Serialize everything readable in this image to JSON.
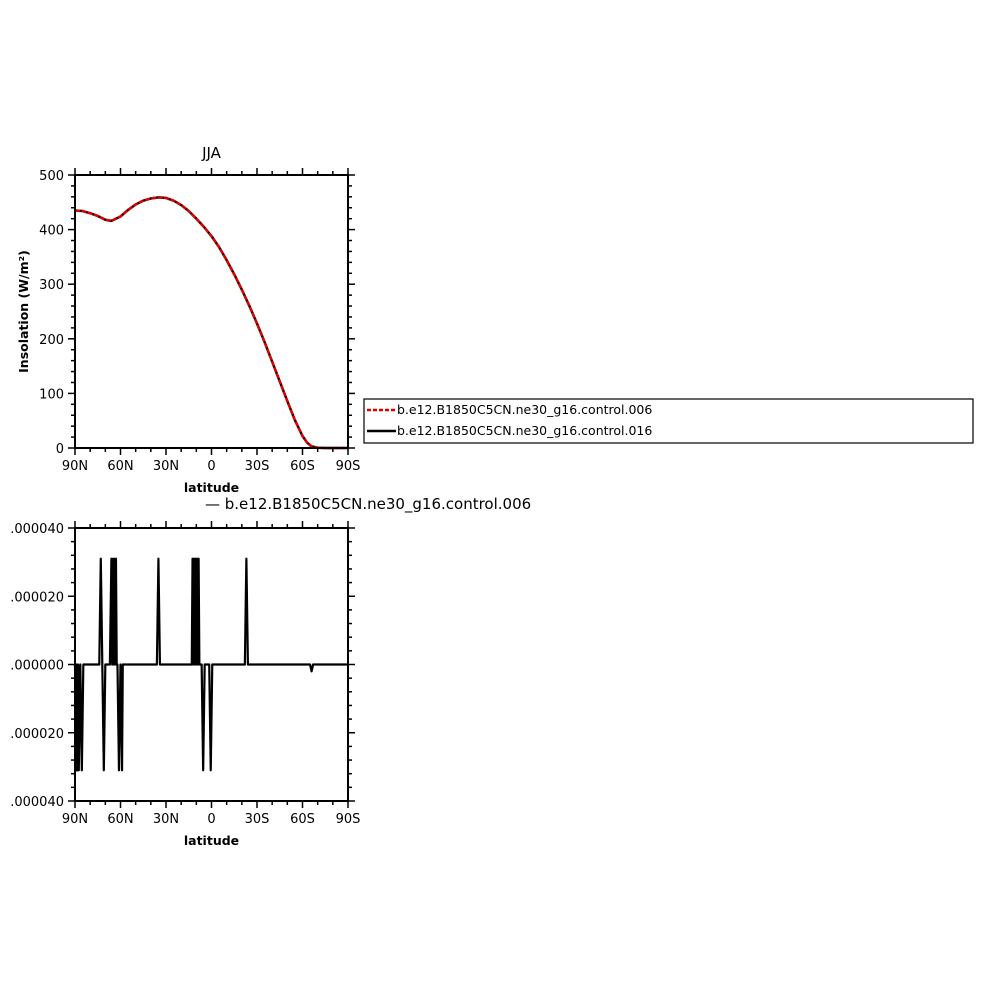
{
  "chart_data": [
    {
      "type": "line",
      "title": "JJA",
      "xlabel": "latitude",
      "ylabel": "Insolation (W/m²)",
      "xlim": [
        90,
        -90
      ],
      "ylim": [
        0,
        500
      ],
      "xticks": [
        {
          "v": 90,
          "label": "90N"
        },
        {
          "v": 60,
          "label": "60N"
        },
        {
          "v": 30,
          "label": "30N"
        },
        {
          "v": 0,
          "label": "0"
        },
        {
          "v": -30,
          "label": "30S"
        },
        {
          "v": -60,
          "label": "60S"
        },
        {
          "v": -90,
          "label": "90S"
        }
      ],
      "yticks": [
        {
          "v": 0,
          "label": "0"
        },
        {
          "v": 100,
          "label": "100"
        },
        {
          "v": 200,
          "label": "200"
        },
        {
          "v": 300,
          "label": "300"
        },
        {
          "v": 400,
          "label": "400"
        },
        {
          "v": 500,
          "label": "500"
        }
      ],
      "grid": false,
      "legend_position": "right",
      "series": [
        {
          "name": "b.e12.B1850C5CN.ne30_g16.control.006",
          "color": "#e00000",
          "dash": true,
          "x": [
            90,
            85,
            80,
            75,
            70,
            66,
            60,
            55,
            50,
            45,
            40,
            35,
            30,
            25,
            20,
            15,
            10,
            5,
            0,
            -5,
            -10,
            -15,
            -20,
            -25,
            -30,
            -35,
            -40,
            -45,
            -50,
            -55,
            -60,
            -63,
            -66,
            -70,
            -75,
            -80,
            -85,
            -90
          ],
          "y": [
            435,
            434,
            430,
            425,
            418,
            416,
            424,
            436,
            446,
            453,
            457,
            459,
            458,
            453,
            445,
            434,
            420,
            405,
            388,
            368,
            344,
            318,
            290,
            260,
            228,
            194,
            158,
            122,
            86,
            51,
            22,
            10,
            3,
            0.5,
            0,
            0,
            0,
            0
          ]
        },
        {
          "name": "b.e12.B1850C5CN.ne30_g16.control.016",
          "color": "#000000",
          "dash": false,
          "x": [
            90,
            85,
            80,
            75,
            70,
            66,
            60,
            55,
            50,
            45,
            40,
            35,
            30,
            25,
            20,
            15,
            10,
            5,
            0,
            -5,
            -10,
            -15,
            -20,
            -25,
            -30,
            -35,
            -40,
            -45,
            -50,
            -55,
            -60,
            -63,
            -66,
            -70,
            -75,
            -80,
            -85,
            -90
          ],
          "y": [
            435,
            434,
            430,
            425,
            418,
            416,
            424,
            436,
            446,
            453,
            457,
            459,
            458,
            453,
            445,
            434,
            420,
            405,
            388,
            368,
            344,
            318,
            290,
            260,
            228,
            194,
            158,
            122,
            86,
            51,
            22,
            10,
            3,
            0.5,
            0,
            0,
            0,
            0
          ]
        }
      ]
    },
    {
      "type": "line",
      "title": "— b.e12.B1850C5CN.ne30_g16.control.006",
      "xlabel": "latitude",
      "ylabel": "",
      "xlim": [
        90,
        -90
      ],
      "ylim": [
        -4e-05,
        4e-05
      ],
      "xticks": [
        {
          "v": 90,
          "label": "90N"
        },
        {
          "v": 60,
          "label": "60N"
        },
        {
          "v": 30,
          "label": "30N"
        },
        {
          "v": 0,
          "label": "0"
        },
        {
          "v": -30,
          "label": "30S"
        },
        {
          "v": -60,
          "label": "60S"
        },
        {
          "v": -90,
          "label": "90S"
        }
      ],
      "yticks": [
        {
          "v": 4e-05,
          "label": ".000040"
        },
        {
          "v": 2e-05,
          "label": ".000020"
        },
        {
          "v": 0,
          "label": ".000000"
        },
        {
          "v": -2e-05,
          "label": ".000020"
        },
        {
          "v": -4e-05,
          "label": ".000040"
        }
      ],
      "grid": false,
      "series": [
        {
          "name": "",
          "color": "#000000",
          "x": [
            90,
            89.5,
            89,
            88.5,
            88,
            87.5,
            86.5,
            85.5,
            84.5,
            74,
            73,
            72,
            71,
            70,
            69,
            68,
            67,
            66,
            65.5,
            65,
            64.5,
            64,
            63.5,
            63,
            62.5,
            62,
            61,
            60,
            59,
            58.5,
            57.5,
            36,
            35,
            34,
            33,
            32,
            13,
            12.5,
            12,
            11.5,
            11,
            10.5,
            10,
            9.5,
            9,
            8.5,
            8,
            7.5,
            7,
            6.5,
            5.5,
            4.5,
            2,
            1.5,
            0.5,
            -0.5,
            -1,
            -21,
            -22,
            -23,
            -24,
            -25,
            -64,
            -65,
            -66,
            -67,
            -90
          ],
          "y": [
            0,
            -3.1e-05,
            0,
            -3.1e-05,
            0,
            -3.1e-05,
            0,
            -3.1e-05,
            0,
            0,
            3.1e-05,
            0,
            -3.1e-05,
            0,
            0,
            0,
            0,
            3.1e-05,
            0,
            3.1e-05,
            0,
            3.1e-05,
            0,
            3.1e-05,
            0,
            0,
            -3.1e-05,
            0,
            -3.1e-05,
            0,
            0,
            0,
            3.1e-05,
            0,
            0,
            0,
            0,
            3.1e-05,
            0,
            3.1e-05,
            0,
            3.1e-05,
            0,
            3.1e-05,
            0,
            3.1e-05,
            0,
            0,
            0,
            0,
            -3.1e-05,
            0,
            0,
            0,
            -3.1e-05,
            0,
            0,
            0,
            0,
            3.1e-05,
            0,
            0,
            0,
            0,
            -2e-06,
            0,
            0
          ]
        }
      ]
    }
  ]
}
